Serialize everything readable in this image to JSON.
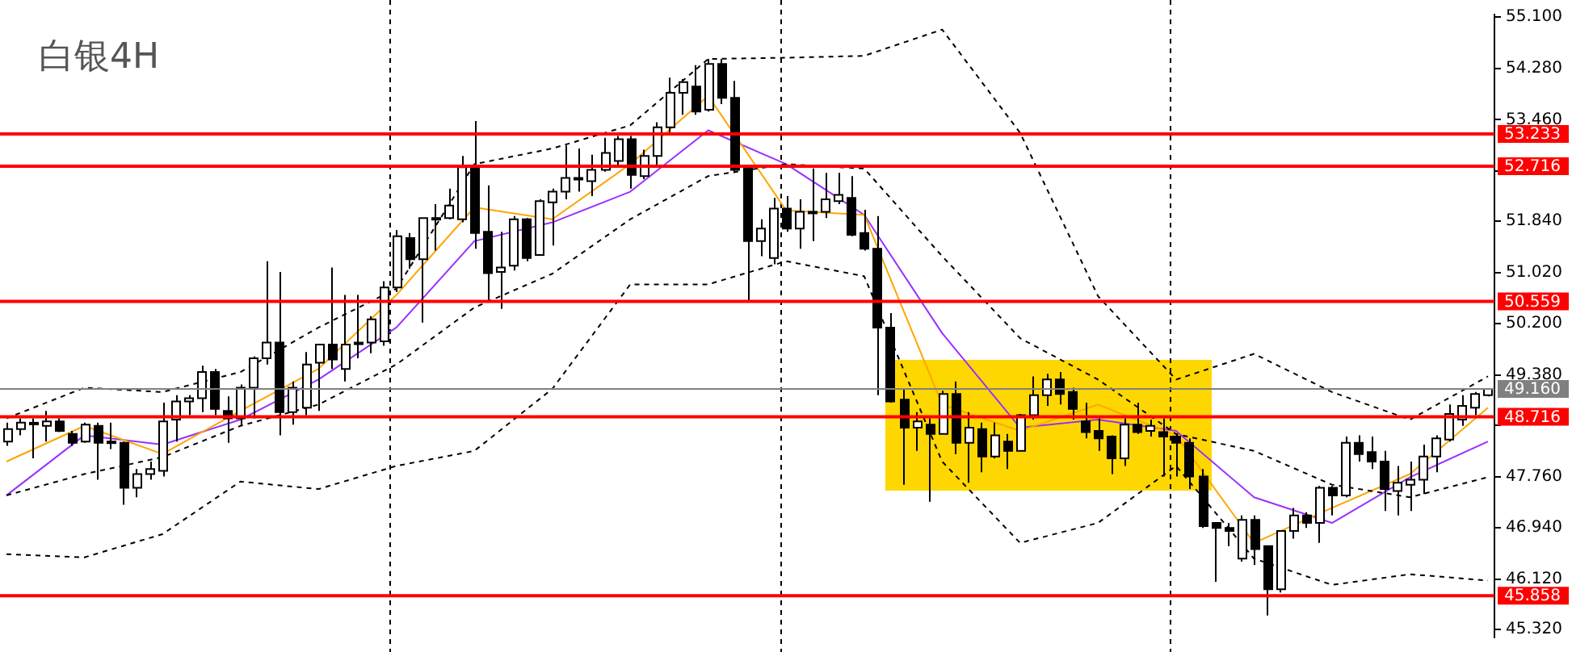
{
  "chart_data": {
    "type": "candlestick",
    "title": "白银4H",
    "categories": [
      null,
      null,
      null,
      null,
      null,
      null,
      null,
      null,
      null,
      null,
      null,
      null,
      null,
      null,
      null,
      null,
      null,
      null,
      null,
      null,
      null,
      null,
      null,
      null,
      null,
      null,
      null,
      null,
      null,
      null,
      null,
      null,
      null,
      null,
      null,
      null,
      null,
      null,
      null,
      null,
      null,
      null,
      null,
      null,
      null,
      null,
      null,
      null,
      null,
      null,
      null,
      null,
      null,
      null,
      null,
      null,
      null,
      null,
      null,
      null,
      null,
      null,
      null,
      null,
      null,
      null,
      null,
      null,
      null,
      null,
      null,
      null,
      null,
      null,
      null,
      null,
      null,
      null,
      null,
      null,
      null,
      null,
      null,
      null,
      null,
      null,
      null,
      null,
      null,
      null,
      null,
      null,
      null,
      null,
      null,
      null,
      null,
      null,
      null,
      null,
      null,
      null,
      null,
      null,
      null,
      null,
      null,
      null,
      null,
      null,
      null,
      null,
      null,
      null,
      null
    ],
    "ohlc": [
      [
        48.32,
        48.62,
        48.25,
        48.52
      ],
      [
        48.52,
        48.69,
        48.42,
        48.62
      ],
      [
        48.62,
        48.69,
        48.05,
        48.62
      ],
      [
        48.57,
        48.81,
        48.32,
        48.64
      ],
      [
        48.64,
        48.69,
        48.47,
        48.49
      ],
      [
        48.44,
        48.49,
        48.25,
        48.3
      ],
      [
        48.32,
        48.62,
        48.3,
        48.59
      ],
      [
        48.57,
        48.62,
        47.71,
        48.3
      ],
      [
        48.32,
        48.62,
        48.2,
        48.32
      ],
      [
        48.3,
        48.32,
        47.31,
        47.58
      ],
      [
        47.58,
        47.88,
        47.43,
        47.8
      ],
      [
        47.8,
        48.0,
        47.71,
        47.88
      ],
      [
        47.85,
        48.94,
        47.76,
        48.64
      ],
      [
        48.67,
        49.06,
        48.32,
        48.96
      ],
      [
        48.96,
        49.06,
        48.74,
        49.01
      ],
      [
        49.01,
        49.53,
        48.79,
        49.43
      ],
      [
        49.43,
        49.48,
        48.74,
        48.84
      ],
      [
        48.81,
        49.04,
        48.3,
        48.69
      ],
      [
        48.69,
        49.23,
        48.57,
        49.18
      ],
      [
        49.18,
        49.68,
        48.69,
        49.65
      ],
      [
        49.65,
        51.2,
        49.55,
        49.9
      ],
      [
        49.9,
        51.03,
        48.42,
        48.79
      ],
      [
        48.79,
        49.28,
        48.59,
        49.18
      ],
      [
        48.86,
        49.75,
        48.74,
        49.55
      ],
      [
        49.58,
        49.87,
        48.81,
        49.87
      ],
      [
        49.87,
        51.1,
        49.48,
        49.63
      ],
      [
        49.48,
        50.66,
        49.28,
        49.87
      ],
      [
        49.9,
        50.66,
        49.65,
        49.9
      ],
      [
        49.9,
        50.32,
        49.73,
        50.27
      ],
      [
        49.92,
        50.88,
        49.85,
        50.78
      ],
      [
        50.78,
        51.7,
        50.71,
        51.6
      ],
      [
        51.57,
        51.65,
        51.08,
        51.23
      ],
      [
        51.23,
        51.89,
        50.22,
        51.89
      ],
      [
        51.89,
        52.11,
        51.37,
        51.89
      ],
      [
        51.89,
        52.36,
        51.87,
        52.09
      ],
      [
        51.87,
        52.88,
        51.82,
        52.7
      ],
      [
        52.73,
        53.44,
        51.4,
        51.65
      ],
      [
        51.67,
        52.41,
        50.54,
        51.01
      ],
      [
        51.03,
        51.67,
        50.44,
        51.1
      ],
      [
        51.13,
        51.92,
        51.05,
        51.87
      ],
      [
        51.87,
        51.89,
        51.2,
        51.25
      ],
      [
        51.3,
        52.19,
        51.3,
        52.16
      ],
      [
        52.14,
        52.36,
        51.45,
        52.31
      ],
      [
        52.31,
        53.05,
        52.19,
        52.53
      ],
      [
        52.53,
        53.0,
        52.31,
        52.53
      ],
      [
        52.48,
        52.9,
        52.24,
        52.66
      ],
      [
        52.66,
        53.17,
        52.63,
        52.93
      ],
      [
        52.8,
        53.2,
        52.73,
        53.15
      ],
      [
        53.15,
        53.2,
        52.36,
        52.58
      ],
      [
        52.56,
        52.98,
        52.51,
        52.88
      ],
      [
        52.88,
        53.42,
        52.73,
        53.34
      ],
      [
        53.34,
        54.13,
        53.25,
        53.89
      ],
      [
        53.89,
        54.11,
        53.54,
        54.06
      ],
      [
        53.99,
        54.33,
        53.54,
        53.59
      ],
      [
        53.62,
        54.43,
        53.59,
        54.35
      ],
      [
        54.35,
        54.43,
        53.71,
        53.81
      ],
      [
        53.81,
        54.08,
        52.61,
        52.66
      ],
      [
        52.73,
        52.73,
        50.54,
        51.52
      ],
      [
        51.52,
        51.87,
        51.28,
        51.72
      ],
      [
        51.25,
        52.21,
        51.15,
        52.04
      ],
      [
        52.04,
        52.24,
        51.67,
        51.72
      ],
      [
        51.72,
        52.19,
        51.4,
        51.99
      ],
      [
        51.99,
        52.68,
        51.52,
        51.99
      ],
      [
        51.99,
        52.61,
        51.89,
        52.19
      ],
      [
        52.16,
        52.61,
        52.11,
        52.26
      ],
      [
        52.21,
        52.56,
        51.6,
        51.62
      ],
      [
        51.65,
        52.02,
        51.37,
        51.4
      ],
      [
        51.4,
        51.92,
        49.06,
        50.14
      ],
      [
        50.14,
        50.37,
        48.94,
        48.96
      ],
      [
        48.99,
        49.16,
        47.63,
        48.54
      ],
      [
        48.54,
        48.79,
        48.17,
        48.64
      ],
      [
        48.59,
        48.69,
        47.36,
        48.44
      ],
      [
        48.44,
        49.13,
        48.44,
        49.08
      ],
      [
        49.08,
        49.28,
        48.12,
        48.3
      ],
      [
        48.3,
        48.79,
        47.66,
        48.54
      ],
      [
        48.52,
        48.62,
        47.83,
        48.08
      ],
      [
        48.08,
        48.62,
        48.05,
        48.42
      ],
      [
        48.32,
        48.44,
        47.88,
        48.17
      ],
      [
        48.17,
        48.76,
        48.17,
        48.74
      ],
      [
        48.74,
        49.36,
        48.67,
        49.06
      ],
      [
        49.06,
        49.4,
        48.89,
        49.31
      ],
      [
        49.31,
        49.43,
        48.91,
        49.08
      ],
      [
        49.11,
        49.18,
        48.67,
        48.84
      ],
      [
        48.64,
        48.94,
        48.37,
        48.47
      ],
      [
        48.49,
        48.69,
        48.17,
        48.37
      ],
      [
        48.4,
        48.42,
        47.8,
        48.05
      ],
      [
        48.05,
        48.69,
        47.93,
        48.59
      ],
      [
        48.59,
        48.94,
        48.44,
        48.47
      ],
      [
        48.49,
        48.67,
        48.4,
        48.57
      ],
      [
        48.47,
        48.69,
        47.76,
        48.4
      ],
      [
        48.4,
        48.44,
        47.76,
        48.3
      ],
      [
        48.3,
        48.37,
        47.56,
        47.76
      ],
      [
        47.76,
        47.88,
        46.94,
        46.97
      ],
      [
        47.02,
        47.02,
        46.08,
        46.94
      ],
      [
        46.94,
        47.02,
        46.65,
        46.89
      ],
      [
        46.45,
        47.14,
        46.4,
        47.07
      ],
      [
        47.07,
        47.14,
        46.35,
        46.6
      ],
      [
        46.65,
        46.65,
        45.54,
        45.96
      ],
      [
        45.96,
        46.89,
        45.91,
        46.89
      ],
      [
        46.89,
        47.26,
        46.77,
        47.14
      ],
      [
        47.14,
        47.19,
        46.94,
        47.02
      ],
      [
        47.02,
        47.61,
        46.7,
        47.58
      ],
      [
        47.58,
        47.61,
        47.14,
        47.46
      ],
      [
        47.46,
        48.4,
        47.43,
        48.3
      ],
      [
        48.3,
        48.42,
        48.0,
        48.12
      ],
      [
        48.15,
        48.4,
        47.88,
        48.0
      ],
      [
        48.0,
        48.17,
        47.21,
        47.56
      ],
      [
        47.53,
        47.93,
        47.14,
        47.66
      ],
      [
        47.63,
        48.0,
        47.21,
        47.71
      ],
      [
        47.71,
        48.27,
        47.48,
        48.08
      ],
      [
        48.08,
        48.42,
        47.83,
        48.37
      ],
      [
        48.35,
        48.91,
        48.32,
        48.76
      ],
      [
        48.67,
        49.06,
        48.57,
        48.89
      ],
      [
        48.86,
        49.11,
        48.74,
        49.08
      ],
      [
        49.06,
        49.16,
        49.04,
        49.16
      ]
    ],
    "series": [
      {
        "type": "line",
        "color": "#000000",
        "line_style": "dashed",
        "values": [
          48.69,
          null,
          null,
          null,
          null,
          null,
          49.18,
          null,
          null,
          null,
          null,
          null,
          49.11,
          null,
          null,
          null,
          null,
          null,
          49.43,
          null,
          null,
          null,
          null,
          null,
          50.14,
          null,
          null,
          null,
          null,
          null,
          50.76,
          null,
          null,
          null,
          null,
          null,
          52.75,
          null,
          null,
          null,
          null,
          null,
          53.0,
          null,
          null,
          null,
          null,
          null,
          53.37,
          null,
          null,
          null,
          null,
          null,
          54.43,
          null,
          null,
          null,
          null,
          null,
          54.45,
          null,
          null,
          null,
          null,
          null,
          54.48,
          null,
          null,
          null,
          null,
          null,
          54.9,
          null,
          null,
          null,
          null,
          null,
          53.25,
          null,
          null,
          null,
          null,
          null,
          50.64,
          null,
          null,
          null,
          null,
          null,
          49.31,
          null,
          null,
          null,
          null,
          null,
          49.72,
          null,
          null,
          null,
          null,
          null,
          49.11,
          null,
          null,
          null,
          null,
          null,
          48.67,
          null,
          null,
          null,
          null,
          null,
          49.36
        ]
      },
      {
        "type": "line",
        "color": "#000000",
        "line_style": "dashed",
        "values": [
          47.46,
          null,
          null,
          null,
          null,
          null,
          47.8,
          null,
          null,
          null,
          null,
          null,
          48.07,
          null,
          null,
          null,
          null,
          null,
          48.57,
          null,
          null,
          null,
          null,
          null,
          48.91,
          null,
          null,
          null,
          null,
          null,
          49.55,
          null,
          null,
          null,
          null,
          null,
          50.46,
          null,
          null,
          null,
          null,
          null,
          51.0,
          null,
          null,
          null,
          null,
          null,
          51.87,
          null,
          null,
          null,
          null,
          null,
          52.56,
          null,
          null,
          null,
          null,
          null,
          52.75,
          null,
          null,
          null,
          null,
          null,
          52.68,
          null,
          null,
          null,
          null,
          null,
          51.28,
          null,
          null,
          null,
          null,
          null,
          49.97,
          null,
          null,
          null,
          null,
          null,
          49.31,
          null,
          null,
          null,
          null,
          null,
          48.44,
          null,
          null,
          null,
          null,
          null,
          48.17,
          null,
          null,
          null,
          null,
          null,
          47.63,
          null,
          null,
          null,
          null,
          null,
          47.43,
          null,
          null,
          null,
          null,
          null,
          47.75
        ]
      },
      {
        "type": "line",
        "color": "#000000",
        "line_style": "dashed",
        "values": [
          46.52,
          null,
          null,
          null,
          null,
          null,
          46.47,
          null,
          null,
          null,
          null,
          null,
          46.84,
          null,
          null,
          null,
          null,
          null,
          47.68,
          null,
          null,
          null,
          null,
          null,
          47.56,
          null,
          null,
          null,
          null,
          null,
          47.93,
          null,
          null,
          null,
          null,
          null,
          48.17,
          null,
          null,
          null,
          null,
          null,
          49.16,
          null,
          null,
          null,
          null,
          null,
          50.83,
          null,
          null,
          null,
          null,
          null,
          50.83,
          null,
          null,
          null,
          null,
          null,
          51.2,
          null,
          null,
          null,
          null,
          null,
          50.96,
          null,
          null,
          null,
          null,
          null,
          48.0,
          null,
          null,
          null,
          null,
          null,
          46.7,
          null,
          null,
          null,
          null,
          null,
          47.02,
          null,
          null,
          null,
          null,
          null,
          47.93,
          null,
          null,
          null,
          null,
          null,
          46.45,
          null,
          null,
          null,
          null,
          null,
          46.03,
          null,
          null,
          null,
          null,
          null,
          46.2,
          null,
          null,
          null,
          null,
          null,
          46.1
        ]
      },
      {
        "type": "line",
        "color": "#ffa500",
        "values": [
          48.0,
          null,
          null,
          null,
          null,
          null,
          48.57,
          null,
          null,
          null,
          null,
          null,
          48.12,
          null,
          null,
          null,
          null,
          null,
          48.81,
          null,
          null,
          null,
          null,
          null,
          49.48,
          null,
          null,
          null,
          null,
          null,
          50.66,
          null,
          null,
          null,
          null,
          null,
          52.06,
          null,
          null,
          null,
          null,
          null,
          51.87,
          null,
          null,
          null,
          null,
          null,
          52.75,
          null,
          null,
          null,
          null,
          null,
          53.84,
          null,
          null,
          null,
          null,
          null,
          52.01,
          null,
          null,
          null,
          null,
          null,
          51.94,
          null,
          null,
          null,
          null,
          null,
          48.91,
          null,
          null,
          null,
          null,
          null,
          48.49,
          null,
          null,
          null,
          null,
          null,
          48.91,
          null,
          null,
          null,
          null,
          null,
          48.42,
          null,
          null,
          null,
          null,
          null,
          46.7,
          null,
          null,
          null,
          null,
          null,
          47.26,
          null,
          null,
          null,
          null,
          null,
          47.8,
          null,
          null,
          null,
          null,
          null,
          48.86
        ]
      },
      {
        "type": "line",
        "color": "#9b30ff",
        "values": [
          47.46,
          null,
          null,
          null,
          null,
          null,
          48.42,
          null,
          null,
          null,
          null,
          null,
          48.27,
          null,
          null,
          null,
          null,
          null,
          48.67,
          null,
          null,
          null,
          null,
          null,
          49.31,
          null,
          null,
          null,
          null,
          null,
          50.14,
          null,
          null,
          null,
          null,
          null,
          51.52,
          null,
          null,
          null,
          null,
          null,
          51.82,
          null,
          null,
          null,
          null,
          null,
          52.31,
          null,
          null,
          null,
          null,
          null,
          53.29,
          null,
          null,
          null,
          null,
          null,
          52.75,
          null,
          null,
          null,
          null,
          null,
          51.94,
          null,
          null,
          null,
          null,
          null,
          50.05,
          null,
          null,
          null,
          null,
          null,
          48.54,
          null,
          null,
          null,
          null,
          null,
          48.67,
          null,
          null,
          null,
          null,
          null,
          48.49,
          null,
          null,
          null,
          null,
          null,
          47.43,
          null,
          null,
          null,
          null,
          null,
          47.02,
          null,
          null,
          null,
          null,
          null,
          47.75,
          null,
          null,
          null,
          null,
          null,
          48.32
        ]
      }
    ],
    "ylim": [
      45.19,
      55.14
    ],
    "yticks": [
      {
        "value": 55.1,
        "label": "55.100"
      },
      {
        "value": 54.28,
        "label": "54.280"
      },
      {
        "value": 53.46,
        "label": "53.460"
      },
      {
        "value": 52.64,
        "label": null
      },
      {
        "value": 51.84,
        "label": "51.840"
      },
      {
        "value": 51.02,
        "label": "51.020"
      },
      {
        "value": 50.2,
        "label": "50.200"
      },
      {
        "value": 49.38,
        "label": "49.380"
      },
      {
        "value": 48.58,
        "label": null
      },
      {
        "value": 47.76,
        "label": "47.760"
      },
      {
        "value": 46.94,
        "label": "46.940"
      },
      {
        "value": 46.12,
        "label": "46.120"
      },
      {
        "value": 45.32,
        "label": "45.320"
      }
    ],
    "ref_lines": [
      {
        "axis": "y",
        "value": 53.233,
        "label": "53.233",
        "color": "#ff0000"
      },
      {
        "axis": "y",
        "value": 52.716,
        "label": "52.716",
        "color": "#ff0000"
      },
      {
        "axis": "y",
        "value": 50.559,
        "label": "50.559",
        "color": "#ff0000"
      },
      {
        "axis": "y",
        "value": 48.716,
        "label": "48.716",
        "color": "#ff0000"
      },
      {
        "axis": "y",
        "value": 45.858,
        "label": "45.858",
        "color": "#ff0000"
      },
      {
        "axis": "y",
        "value": 49.16,
        "label": "49.160",
        "color": "#808080"
      }
    ]
  }
}
